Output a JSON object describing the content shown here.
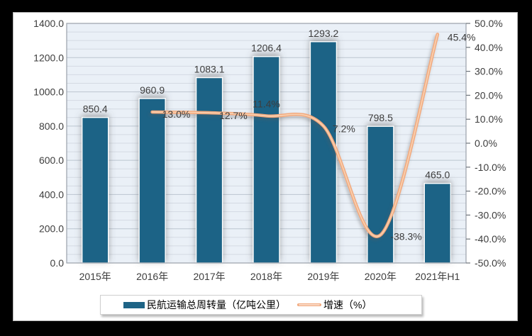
{
  "frame": {
    "background": "#000000"
  },
  "panel": {
    "background": "#ffffff",
    "border": "#b5b5b5"
  },
  "colors": {
    "bar": "#1e6486",
    "bar_outline": "#ffffff",
    "line": "#f2a87c",
    "line_highlight": "#f9cfae",
    "plot_bg": "#eaf0f7",
    "grid_major": "#bcc5d0",
    "grid_minor": "#d4dae3",
    "axis_border": "#9aa1aa",
    "tick": "#6e747c",
    "text": "#3d3d3d",
    "shadow": "#5a5a5a"
  },
  "chart_data": {
    "type": "bar+line combo, dual y-axes, horizontal gridlines, legend bottom",
    "categories": [
      "2015年",
      "2016年",
      "2017年",
      "2018年",
      "2019年",
      "2020年",
      "2021年H1"
    ],
    "series": [
      {
        "name": "民航运输总周转量（亿吨公里）",
        "type": "bar",
        "axis": "left",
        "values": [
          850.4,
          960.9,
          1083.1,
          1206.4,
          1293.2,
          798.5,
          465.0
        ],
        "labels": [
          "850.4",
          "960.9",
          "1083.1",
          "1206.4",
          "1293.2",
          "798.5",
          "465.0"
        ]
      },
      {
        "name": "增速（%）",
        "type": "line",
        "axis": "right",
        "values": [
          null,
          13.0,
          12.7,
          11.4,
          7.2,
          -38.3,
          45.4
        ],
        "labels": [
          null,
          "13.0%",
          "12.7%",
          "11.4%",
          "7.2%",
          "-38.3%",
          "45.4%"
        ]
      }
    ],
    "left_axis": {
      "min": 0,
      "max": 1400,
      "major_step": 200,
      "minor_step": 50,
      "tick_labels": [
        "1400.0",
        "1200.0",
        "1000.0",
        "800.0",
        "600.0",
        "400.0",
        "200.0",
        "0.0"
      ]
    },
    "right_axis": {
      "min": -50,
      "max": 50,
      "major_step": 10,
      "tick_labels": [
        "50.0%",
        "40.0%",
        "30.0%",
        "20.0%",
        "10.0%",
        "0.0%",
        "-10.0%",
        "-20.0%",
        "-30.0%",
        "-40.0%",
        "-50.0%"
      ]
    },
    "grid": "on (minor every 50 left-axis units)",
    "legend_position": "bottom"
  },
  "legend": {
    "items": [
      {
        "label": "民航运输总周转量（亿吨公里）",
        "swatch": "bar"
      },
      {
        "label": "增速（%）",
        "swatch": "line"
      }
    ]
  }
}
